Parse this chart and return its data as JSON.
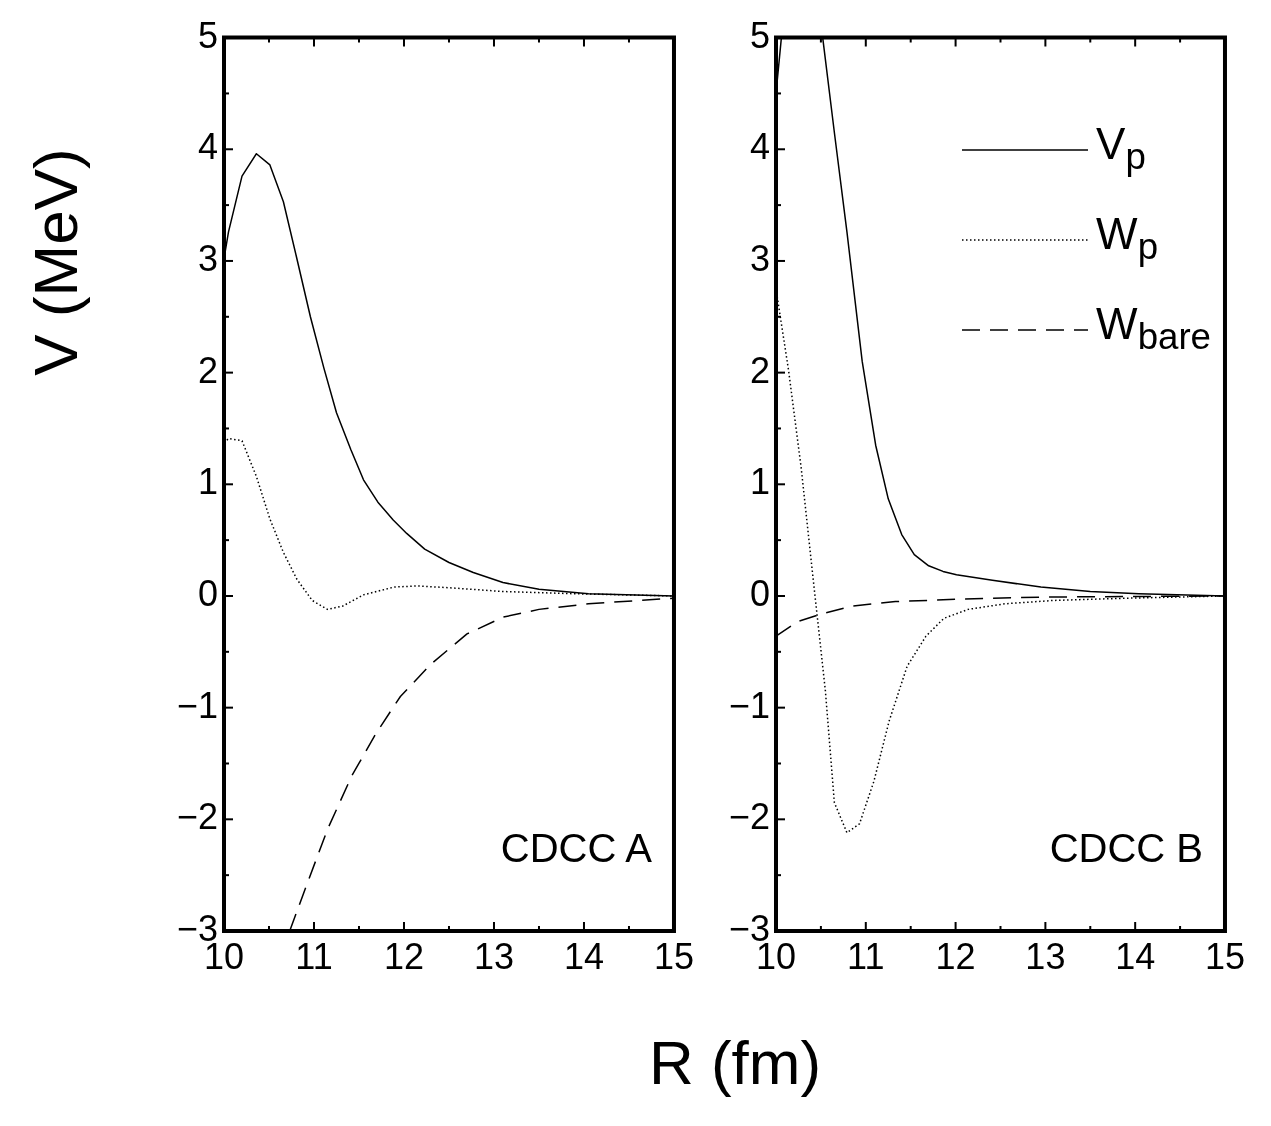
{
  "chart_data": [
    {
      "type": "line",
      "xlabel": "R (fm)",
      "ylabel": "V (MeV)",
      "xlim": [
        10,
        15
      ],
      "ylim": [
        -3,
        5
      ],
      "xticks": [
        10,
        {
          "value": 10.5,
          "label": null
        },
        11,
        {
          "value": 11.5,
          "label": null
        },
        12,
        {
          "value": 12.5,
          "label": null
        },
        13,
        {
          "value": 13.5,
          "label": null
        },
        14,
        {
          "value": 14.5,
          "label": null
        },
        15
      ],
      "yticks": [
        {
          "value": -3,
          "label": "−3"
        },
        {
          "value": -2.5,
          "label": null
        },
        {
          "value": -2,
          "label": "−2"
        },
        {
          "value": -1.5,
          "label": null
        },
        {
          "value": -1,
          "label": "−1"
        },
        {
          "value": -0.5,
          "label": null
        },
        0,
        {
          "value": 0.5,
          "label": null
        },
        1,
        {
          "value": 1.5,
          "label": null
        },
        2,
        {
          "value": 2.5,
          "label": null
        },
        3,
        {
          "value": 3.5,
          "label": null
        },
        4,
        {
          "value": 4.5,
          "label": null
        },
        5
      ],
      "marker": "none",
      "annotations": [
        "CDCC A"
      ],
      "series": [
        {
          "color": "#000000",
          "line_style": "solid",
          "x": [
            10.0,
            10.05,
            10.2,
            10.36,
            10.51,
            10.66,
            10.81,
            10.96,
            11.11,
            11.25,
            11.41,
            11.55,
            11.71,
            11.88,
            12.03,
            12.23,
            12.5,
            12.77,
            13.1,
            13.5,
            14.05,
            15
          ],
          "values": [
            3.02,
            3.26,
            3.76,
            3.96,
            3.86,
            3.53,
            3.02,
            2.5,
            2.04,
            1.64,
            1.31,
            1.04,
            0.84,
            0.68,
            0.56,
            0.42,
            0.3,
            0.21,
            0.12,
            0.06,
            0.02,
            0
          ]
        },
        {
          "color": "#000000",
          "line_style": "dotted",
          "x": [
            10.0,
            10.05,
            10.2,
            10.36,
            10.51,
            10.66,
            10.81,
            10.98,
            11.15,
            11.32,
            11.55,
            11.89,
            12.16,
            12.57,
            13.1,
            13.9,
            15
          ],
          "values": [
            1.37,
            1.41,
            1.39,
            1.07,
            0.69,
            0.39,
            0.15,
            -0.04,
            -0.12,
            -0.09,
            0.01,
            0.08,
            0.09,
            0.07,
            0.04,
            0.02,
            0
          ]
        },
        {
          "color": "#000000",
          "line_style": "dashed",
          "x": [
            10.73,
            10.95,
            11.15,
            11.42,
            11.69,
            11.96,
            12.3,
            12.7,
            13.1,
            13.5,
            14.05,
            15
          ],
          "values": [
            -3.0,
            -2.52,
            -2.09,
            -1.61,
            -1.23,
            -0.9,
            -0.61,
            -0.34,
            -0.19,
            -0.12,
            -0.07,
            -0.02
          ]
        }
      ]
    },
    {
      "type": "line",
      "xlim": [
        10,
        15
      ],
      "ylim": [
        -3,
        5
      ],
      "xticks": [
        10,
        {
          "value": 10.5,
          "label": null
        },
        11,
        {
          "value": 11.5,
          "label": null
        },
        12,
        {
          "value": 12.5,
          "label": null
        },
        13,
        {
          "value": 13.5,
          "label": null
        },
        14,
        {
          "value": 14.5,
          "label": null
        },
        15
      ],
      "yticks": [
        {
          "value": -3,
          "label": "−3"
        },
        {
          "value": -2.5,
          "label": null
        },
        {
          "value": -2,
          "label": "−2"
        },
        {
          "value": -1.5,
          "label": null
        },
        {
          "value": -1,
          "label": "−1"
        },
        {
          "value": -0.5,
          "label": null
        },
        0,
        {
          "value": 0.5,
          "label": null
        },
        1,
        {
          "value": 1.5,
          "label": null
        },
        2,
        {
          "value": 2.5,
          "label": null
        },
        3,
        {
          "value": 3.5,
          "label": null
        },
        4,
        {
          "value": 4.5,
          "label": null
        },
        5
      ],
      "marker": "none",
      "legend": "top right",
      "annotations": [
        "CDCC B"
      ],
      "series": [
        {
          "name": "V$_{p}$",
          "color": "#000000",
          "line_style": "solid",
          "x": [
            10.0,
            10.06,
            10.3,
            10.52,
            10.65,
            10.79,
            10.96,
            11.11,
            11.25,
            11.4,
            11.54,
            11.7,
            11.86,
            12.01,
            12.41,
            12.95,
            13.5,
            14.04,
            15
          ],
          "values": [
            4.5,
            5.0,
            null,
            5.0,
            4.15,
            3.26,
            2.1,
            1.35,
            0.87,
            0.55,
            0.37,
            0.27,
            0.22,
            0.19,
            0.14,
            0.08,
            0.04,
            0.02,
            0
          ]
        },
        {
          "name": "W$_{p}$",
          "color": "#000000",
          "line_style": "dotted",
          "x": [
            10.0,
            10.14,
            10.28,
            10.41,
            10.55,
            10.65,
            10.79,
            10.93,
            11.09,
            11.26,
            11.46,
            11.67,
            11.87,
            12.14,
            12.55,
            13.09,
            13.9,
            15
          ],
          "values": [
            2.75,
            2.02,
            1.15,
            0.18,
            -0.85,
            -1.85,
            -2.12,
            -2.04,
            -1.66,
            -1.12,
            -0.63,
            -0.36,
            -0.2,
            -0.12,
            -0.07,
            -0.04,
            -0.02,
            0
          ]
        },
        {
          "name": "W$_{bare}$",
          "color": "#000000",
          "line_style": "dashed",
          "x": [
            10.0,
            10.24,
            10.51,
            10.85,
            11.33,
            12.0,
            12.95,
            15
          ],
          "values": [
            -0.36,
            -0.23,
            -0.16,
            -0.09,
            -0.05,
            -0.03,
            -0.01,
            0
          ]
        }
      ]
    }
  ]
}
